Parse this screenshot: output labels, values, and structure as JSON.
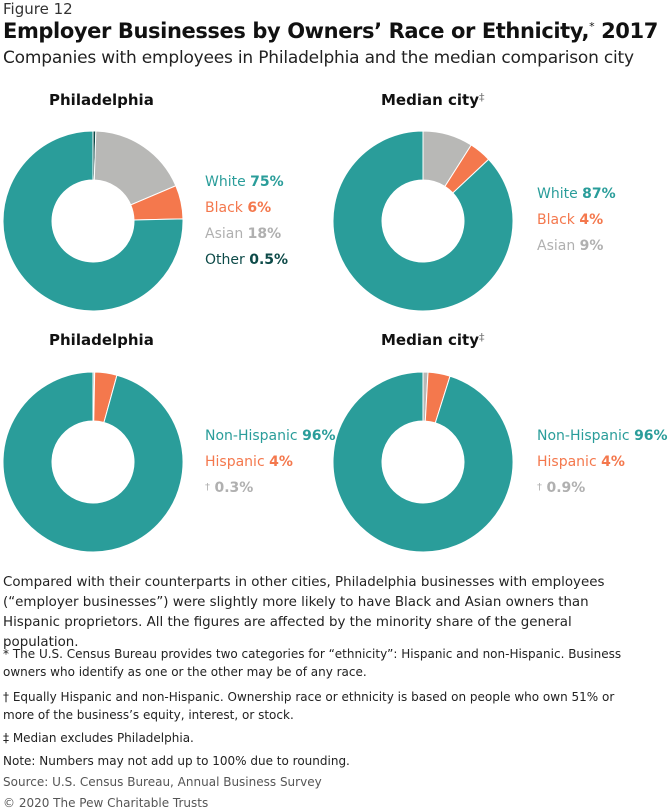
{
  "figure_label": "Figure 12",
  "title": "Employer Businesses by Owners’ Race or Ethnicity,",
  "title_mark": "*",
  "title_year": " 2017",
  "subtitle": "Companies with employees in Philadelphia and the median comparison city",
  "colors": {
    "teal": "#2a9d9a",
    "orange": "#f4784d",
    "gray": "#b8b8b6",
    "dark": "#0d4a48",
    "lightgray": "#b0b0b0"
  },
  "chart_data": [
    {
      "type": "pie",
      "title": "Philadelphia",
      "title_mark": "",
      "slices": [
        {
          "label": "White",
          "value": 75,
          "display": "75%",
          "color": "#2a9d9a"
        },
        {
          "label": "Black",
          "value": 6,
          "display": "6%",
          "color": "#f4784d"
        },
        {
          "label": "Asian",
          "value": 18,
          "display": "18%",
          "color": "#b8b8b6"
        },
        {
          "label": "Other",
          "value": 0.5,
          "display": "0.5%",
          "color": "#0d4a48"
        }
      ]
    },
    {
      "type": "pie",
      "title": "Median city",
      "title_mark": "‡",
      "slices": [
        {
          "label": "White",
          "value": 87,
          "display": "87%",
          "color": "#2a9d9a"
        },
        {
          "label": "Black",
          "value": 4,
          "display": "4%",
          "color": "#f4784d"
        },
        {
          "label": "Asian",
          "value": 9,
          "display": "9%",
          "color": "#b8b8b6"
        }
      ]
    },
    {
      "type": "pie",
      "title": "Philadelphia",
      "title_mark": "",
      "slices": [
        {
          "label": "Non-Hispanic",
          "value": 96,
          "display": "96%",
          "color": "#2a9d9a"
        },
        {
          "label": "Hispanic",
          "value": 4,
          "display": "4%",
          "color": "#f4784d"
        },
        {
          "label": "†",
          "value": 0.3,
          "display": "0.3%",
          "color": "#b8b8b6"
        }
      ]
    },
    {
      "type": "pie",
      "title": "Median city",
      "title_mark": "‡",
      "slices": [
        {
          "label": "Non-Hispanic",
          "value": 96,
          "display": "96%",
          "color": "#2a9d9a"
        },
        {
          "label": "Hispanic",
          "value": 4,
          "display": "4%",
          "color": "#f4784d"
        },
        {
          "label": "†",
          "value": 0.9,
          "display": "0.9%",
          "color": "#b8b8b6"
        }
      ]
    }
  ],
  "paragraph": "Compared with their counterparts in other cities, Philadelphia businesses with employees (“employer businesses”) were slightly more likely to have Black and Asian owners than Hispanic proprietors. All the figures are affected by the minority share of the general population.",
  "notes": [
    "* The U.S. Census Bureau provides two categories for “ethnicity”: Hispanic and non-Hispanic. Business owners who identify as one or the other may be of any race.",
    "† Equally Hispanic and non-Hispanic. Ownership race or ethnicity is based on people who own 51% or more of the business’s equity, interest, or stock.",
    "‡ Median excludes Philadelphia.",
    "Note: Numbers may not add up to 100% due to rounding."
  ],
  "source": "Source: U.S. Census Bureau, Annual Business Survey",
  "copyright": "© 2020 The Pew Charitable Trusts"
}
